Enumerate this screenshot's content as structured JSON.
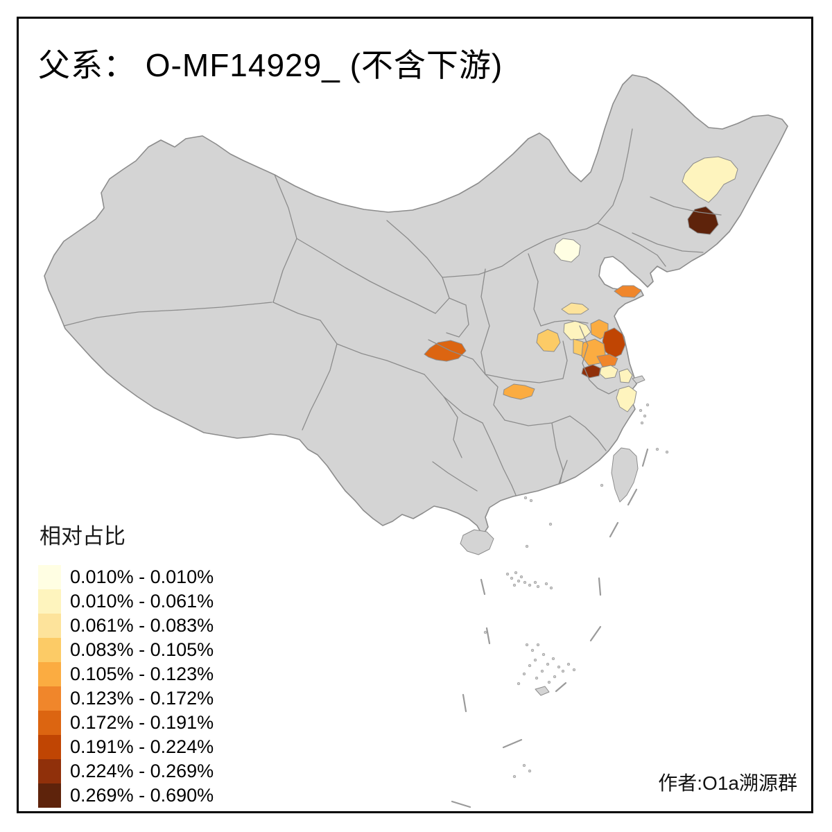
{
  "title": "父系： O-MF14929_ (不含下游)",
  "attribution": "作者:O1a溯源群",
  "legend": {
    "title": "相对占比",
    "buckets": [
      {
        "label": "0.010% - 0.010%",
        "color": "#FFFEE3"
      },
      {
        "label": "0.010% - 0.061%",
        "color": "#FEF4BE"
      },
      {
        "label": "0.061% - 0.083%",
        "color": "#FDE39B"
      },
      {
        "label": "0.083% - 0.105%",
        "color": "#FCCB66"
      },
      {
        "label": "0.105% - 0.123%",
        "color": "#FBAC41"
      },
      {
        "label": "0.123% - 0.172%",
        "color": "#F0862B"
      },
      {
        "label": "0.172% - 0.191%",
        "color": "#DC6511"
      },
      {
        "label": "0.191% - 0.224%",
        "color": "#C04503"
      },
      {
        "label": "0.224% - 0.269%",
        "color": "#90300A"
      },
      {
        "label": "0.269% - 0.690%",
        "color": "#5E230B"
      }
    ]
  },
  "map": {
    "background": "#FFFFFF",
    "base_fill": "#D4D4D4",
    "border_color": "#8C8C8C",
    "frame_color": "#000000",
    "regions": [
      {
        "id": "harbin-area",
        "bucket": 2
      },
      {
        "id": "jilin-southeast",
        "bucket": 10
      },
      {
        "id": "beijing",
        "bucket": 1
      },
      {
        "id": "shandong-central",
        "bucket": 3
      },
      {
        "id": "shandong-weihai",
        "bucket": 6
      },
      {
        "id": "shandong-southwest",
        "bucket": 2
      },
      {
        "id": "henan-east",
        "bucket": 4
      },
      {
        "id": "jiangsu-lianyungang",
        "bucket": 5
      },
      {
        "id": "jiangsu-yancheng",
        "bucket": 8
      },
      {
        "id": "jiangsu-central",
        "bucket": 5
      },
      {
        "id": "jiangsu-northwest",
        "bucket": 4
      },
      {
        "id": "jiangsu-yangzhou",
        "bucket": 6
      },
      {
        "id": "nanjing-area",
        "bucket": 9
      },
      {
        "id": "changzhou-zhenjiang",
        "bucket": 2
      },
      {
        "id": "suzhou-wuxi",
        "bucket": 2
      },
      {
        "id": "zhejiang-north",
        "bucket": 2
      },
      {
        "id": "hanzhong-area",
        "bucket": 7
      },
      {
        "id": "hubei-west",
        "bucket": 5
      }
    ]
  }
}
